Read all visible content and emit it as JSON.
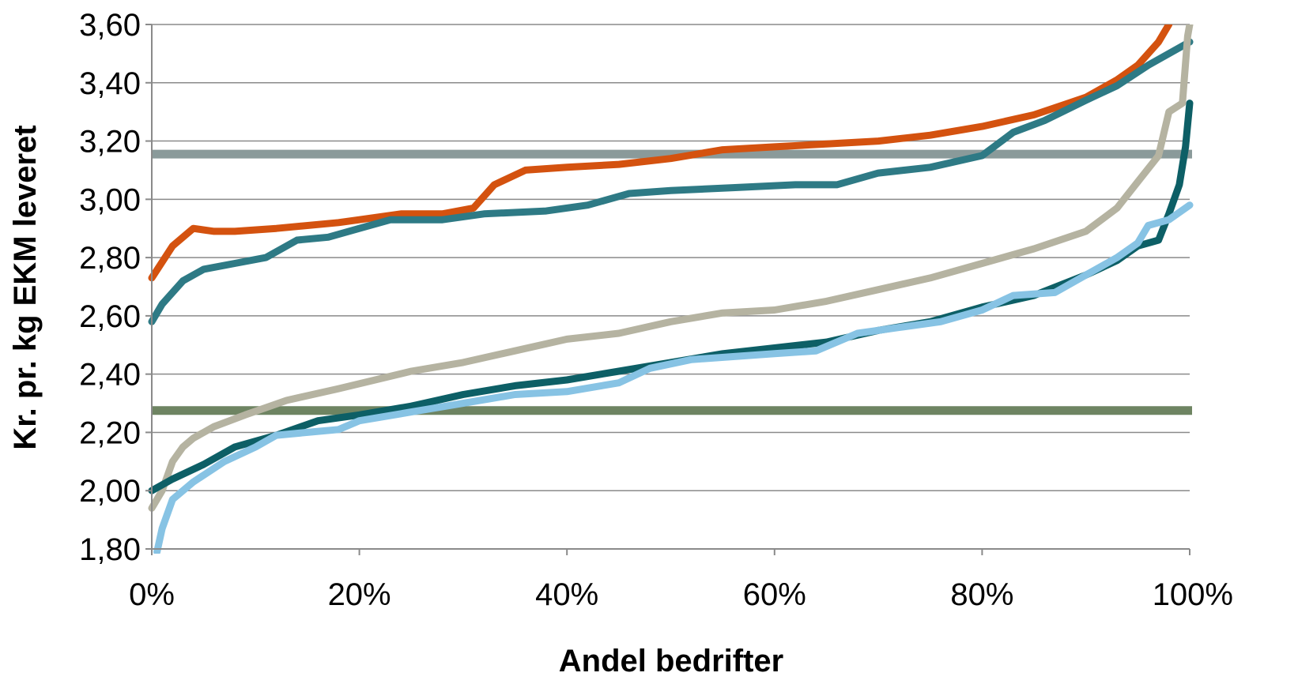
{
  "chart_data": {
    "type": "line",
    "title": "",
    "xlabel": "Andel bedrifter",
    "ylabel": "Kr. pr. kg EKM leveret",
    "xlim": [
      0,
      100
    ],
    "ylim": [
      1.8,
      3.6
    ],
    "x_ticks": [
      0,
      20,
      40,
      60,
      80,
      100
    ],
    "x_tick_labels": [
      "0%",
      "20%",
      "40%",
      "60%",
      "80%",
      "100%"
    ],
    "y_ticks": [
      1.8,
      2.0,
      2.2,
      2.4,
      2.6,
      2.8,
      3.0,
      3.2,
      3.4,
      3.6
    ],
    "y_tick_labels": [
      "1,80",
      "2,00",
      "2,20",
      "2,40",
      "2,60",
      "2,80",
      "3,00",
      "3,20",
      "3,40",
      "3,60"
    ],
    "grid": "horizontal",
    "legend": "none",
    "series": [
      {
        "color": "#d4520f",
        "points": [
          [
            0,
            2.73
          ],
          [
            2,
            2.84
          ],
          [
            4,
            2.9
          ],
          [
            6,
            2.89
          ],
          [
            8,
            2.89
          ],
          [
            12,
            2.9
          ],
          [
            18,
            2.92
          ],
          [
            20,
            2.93
          ],
          [
            24,
            2.95
          ],
          [
            28,
            2.95
          ],
          [
            31,
            2.97
          ],
          [
            33,
            3.05
          ],
          [
            36,
            3.1
          ],
          [
            40,
            3.11
          ],
          [
            45,
            3.12
          ],
          [
            50,
            3.14
          ],
          [
            55,
            3.17
          ],
          [
            60,
            3.18
          ],
          [
            70,
            3.2
          ],
          [
            75,
            3.22
          ],
          [
            80,
            3.25
          ],
          [
            85,
            3.29
          ],
          [
            90,
            3.35
          ],
          [
            93,
            3.41
          ],
          [
            95,
            3.46
          ],
          [
            97,
            3.54
          ],
          [
            98,
            3.6
          ]
        ]
      },
      {
        "color": "#2e7a85",
        "points": [
          [
            0,
            2.58
          ],
          [
            1,
            2.64
          ],
          [
            3,
            2.72
          ],
          [
            5,
            2.76
          ],
          [
            8,
            2.78
          ],
          [
            11,
            2.8
          ],
          [
            14,
            2.86
          ],
          [
            17,
            2.87
          ],
          [
            20,
            2.9
          ],
          [
            23,
            2.93
          ],
          [
            28,
            2.93
          ],
          [
            32,
            2.95
          ],
          [
            38,
            2.96
          ],
          [
            42,
            2.98
          ],
          [
            46,
            3.02
          ],
          [
            50,
            3.03
          ],
          [
            56,
            3.04
          ],
          [
            62,
            3.05
          ],
          [
            66,
            3.05
          ],
          [
            70,
            3.09
          ],
          [
            75,
            3.11
          ],
          [
            80,
            3.15
          ],
          [
            83,
            3.23
          ],
          [
            86,
            3.27
          ],
          [
            90,
            3.34
          ],
          [
            93,
            3.39
          ],
          [
            96,
            3.46
          ],
          [
            100,
            3.54
          ]
        ]
      },
      {
        "color": "#b5b3a1",
        "points": [
          [
            0,
            1.94
          ],
          [
            1,
            2.0
          ],
          [
            2,
            2.1
          ],
          [
            3,
            2.15
          ],
          [
            4,
            2.18
          ],
          [
            6,
            2.22
          ],
          [
            9,
            2.26
          ],
          [
            13,
            2.31
          ],
          [
            18,
            2.35
          ],
          [
            25,
            2.41
          ],
          [
            30,
            2.44
          ],
          [
            35,
            2.48
          ],
          [
            40,
            2.52
          ],
          [
            45,
            2.54
          ],
          [
            50,
            2.58
          ],
          [
            55,
            2.61
          ],
          [
            60,
            2.62
          ],
          [
            65,
            2.65
          ],
          [
            70,
            2.69
          ],
          [
            75,
            2.73
          ],
          [
            80,
            2.78
          ],
          [
            85,
            2.83
          ],
          [
            90,
            2.89
          ],
          [
            93,
            2.97
          ],
          [
            95,
            3.06
          ],
          [
            97,
            3.15
          ],
          [
            98,
            3.3
          ],
          [
            99.3,
            3.33
          ],
          [
            99.8,
            3.56
          ],
          [
            100,
            3.6
          ]
        ]
      },
      {
        "color": "#0d5f66",
        "points": [
          [
            0,
            2.0
          ],
          [
            2,
            2.04
          ],
          [
            5,
            2.09
          ],
          [
            8,
            2.15
          ],
          [
            12,
            2.19
          ],
          [
            16,
            2.24
          ],
          [
            20,
            2.26
          ],
          [
            25,
            2.29
          ],
          [
            30,
            2.33
          ],
          [
            35,
            2.36
          ],
          [
            40,
            2.38
          ],
          [
            45,
            2.41
          ],
          [
            50,
            2.44
          ],
          [
            55,
            2.47
          ],
          [
            60,
            2.49
          ],
          [
            65,
            2.51
          ],
          [
            70,
            2.55
          ],
          [
            75,
            2.58
          ],
          [
            80,
            2.63
          ],
          [
            85,
            2.67
          ],
          [
            90,
            2.74
          ],
          [
            93,
            2.79
          ],
          [
            95,
            2.84
          ],
          [
            97,
            2.86
          ],
          [
            98,
            2.95
          ],
          [
            99,
            3.05
          ],
          [
            99.6,
            3.18
          ],
          [
            100,
            3.33
          ]
        ]
      },
      {
        "color": "#87c3e4",
        "points": [
          [
            0.5,
            1.79
          ],
          [
            1,
            1.87
          ],
          [
            2,
            1.97
          ],
          [
            4,
            2.03
          ],
          [
            7,
            2.1
          ],
          [
            10,
            2.15
          ],
          [
            12,
            2.19
          ],
          [
            15,
            2.2
          ],
          [
            18,
            2.21
          ],
          [
            20,
            2.24
          ],
          [
            25,
            2.27
          ],
          [
            30,
            2.3
          ],
          [
            35,
            2.33
          ],
          [
            40,
            2.34
          ],
          [
            45,
            2.37
          ],
          [
            48,
            2.42
          ],
          [
            52,
            2.45
          ],
          [
            56,
            2.46
          ],
          [
            60,
            2.47
          ],
          [
            64,
            2.48
          ],
          [
            68,
            2.54
          ],
          [
            72,
            2.56
          ],
          [
            76,
            2.58
          ],
          [
            80,
            2.62
          ],
          [
            83,
            2.67
          ],
          [
            87,
            2.68
          ],
          [
            90,
            2.74
          ],
          [
            93,
            2.8
          ],
          [
            95,
            2.85
          ],
          [
            96,
            2.91
          ],
          [
            98,
            2.93
          ],
          [
            100,
            2.98
          ]
        ]
      }
    ],
    "reference_lines": [
      {
        "y": 3.155,
        "color": "#8a9a9a"
      },
      {
        "y": 2.275,
        "color": "#6e8462"
      }
    ]
  }
}
